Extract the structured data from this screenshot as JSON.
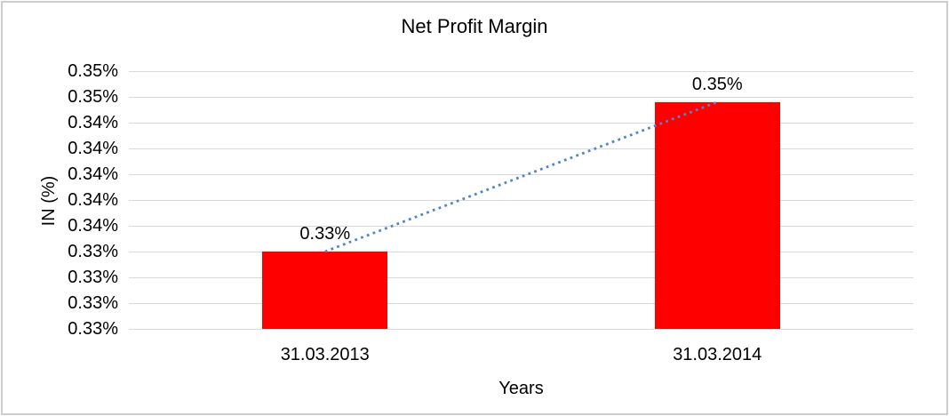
{
  "frame": {
    "background": "#ffffff",
    "border_color": "#cdcdcd"
  },
  "chart_data": {
    "type": "bar",
    "title": "Net Profit Margin",
    "xlabel": "Years",
    "ylabel": "IN (%)",
    "categories": [
      "31.03.2013",
      "31.03.2014"
    ],
    "values": [
      0.3325,
      0.347
    ],
    "data_labels": [
      "0.33%",
      "0.35%"
    ],
    "ylim": [
      0.325,
      0.35
    ],
    "y_major_step": 0.0025,
    "y_tick_labels": [
      "0.35%",
      "0.35%",
      "0.34%",
      "0.34%",
      "0.34%",
      "0.34%",
      "0.34%",
      "0.33%",
      "0.33%",
      "0.33%",
      "0.33%"
    ],
    "grid": true,
    "legend": "none",
    "bar_color": "#ff0000",
    "gridline_color": "#d9d9d9",
    "text_color": "#000000",
    "trendline": {
      "type": "linear",
      "style": "dotted",
      "color": "#4f86c9",
      "connects": "bar tops"
    }
  }
}
